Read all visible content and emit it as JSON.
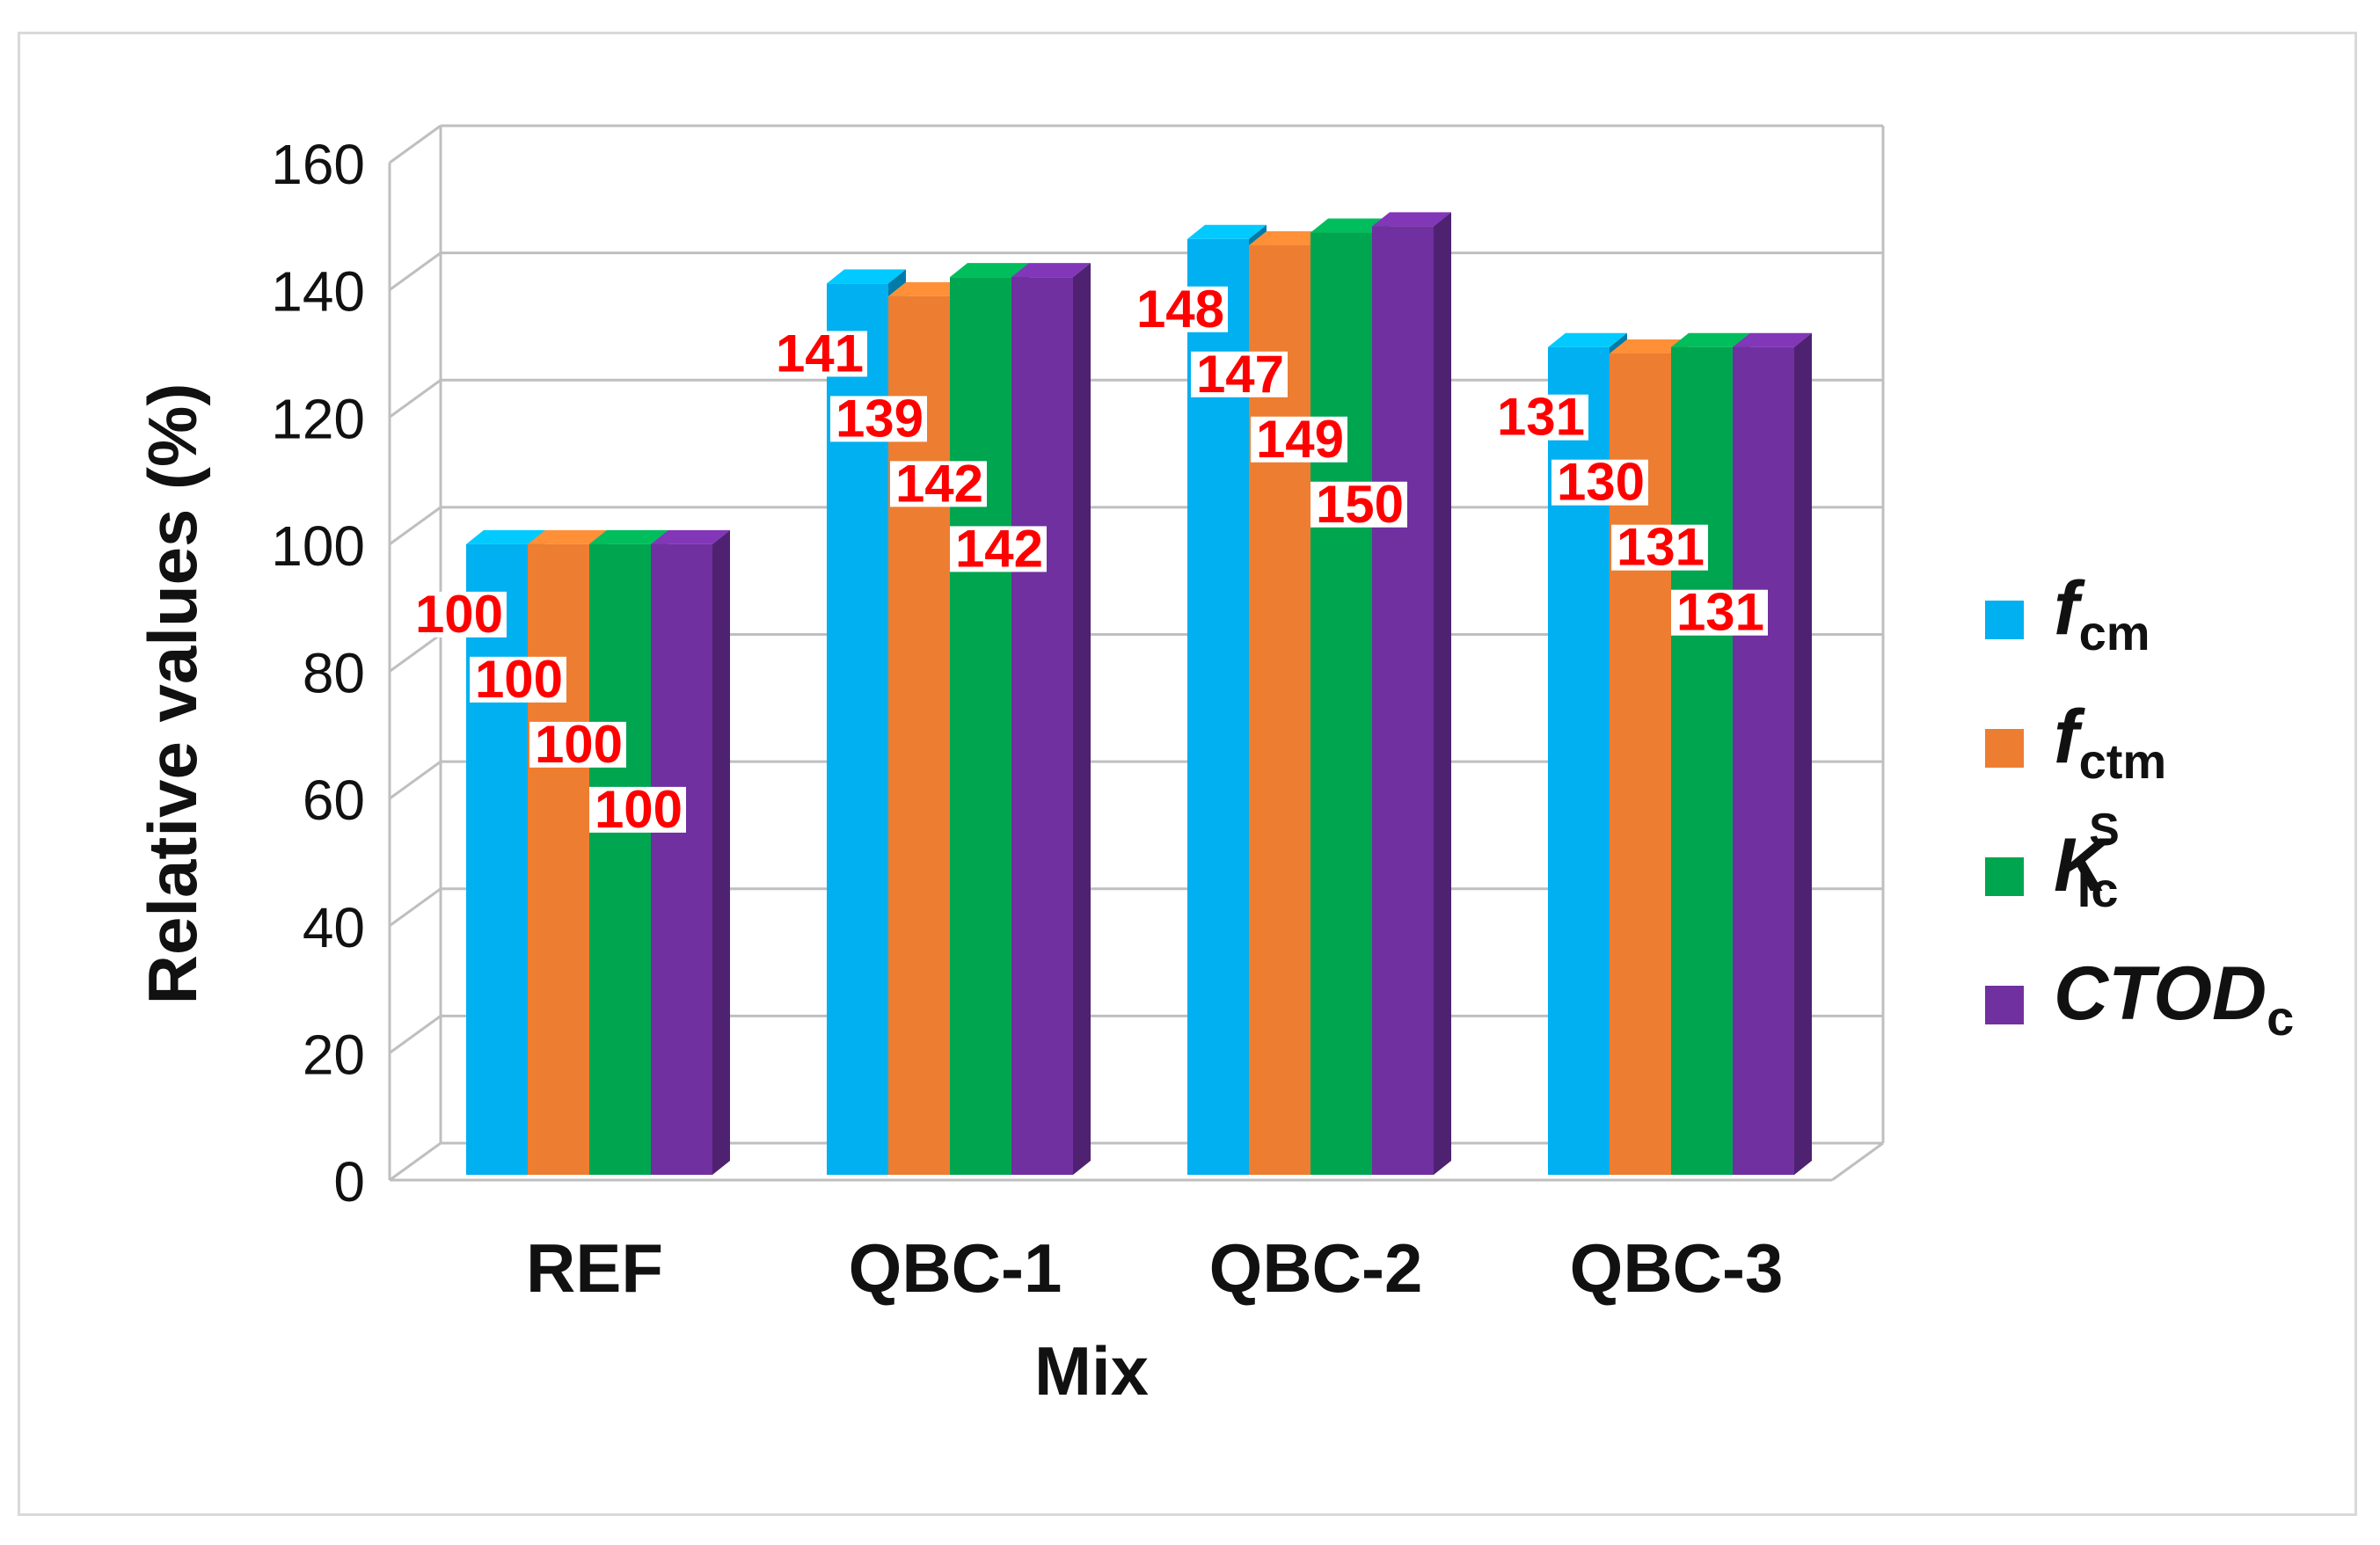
{
  "chart_data": {
    "type": "bar",
    "style": "3d-clustered-column",
    "title": "",
    "xlabel": "Mix",
    "ylabel": "Relative values (%)",
    "ylim": [
      0,
      160
    ],
    "yticks": [
      "0",
      "20",
      "40",
      "60",
      "80",
      "100",
      "120",
      "140",
      "160"
    ],
    "categories": [
      "REF",
      "QBC-1",
      "QBC-2",
      "QBC-3"
    ],
    "grid": true,
    "legend_position": "right",
    "series": [
      {
        "name": "fcm",
        "legend": {
          "main": "f",
          "sub": "cm",
          "sup": ""
        },
        "color": "#00b0f0",
        "values": [
          100,
          141,
          148,
          131
        ],
        "labels": [
          "100",
          "141",
          "148",
          "131"
        ]
      },
      {
        "name": "fctm",
        "legend": {
          "main": "f",
          "sub": "ctm",
          "sup": ""
        },
        "color": "#ed7d31",
        "values": [
          100,
          139,
          147,
          130
        ],
        "labels": [
          "100",
          "139",
          "147",
          "130"
        ]
      },
      {
        "name": "KIc S",
        "legend": {
          "main": "K",
          "sub": "Ic",
          "sup": "S"
        },
        "color": "#00a550",
        "values": [
          100,
          142,
          149,
          131
        ],
        "labels": [
          "100",
          "142",
          "149",
          "131"
        ]
      },
      {
        "name": "CTODc",
        "legend": {
          "main": "CTOD",
          "sub": "c",
          "sup": ""
        },
        "color": "#7030a0",
        "values": [
          100,
          142,
          150,
          131
        ],
        "labels": [
          "100",
          "142",
          "150",
          "131"
        ]
      }
    ],
    "data_label_color": "#ff0000"
  }
}
